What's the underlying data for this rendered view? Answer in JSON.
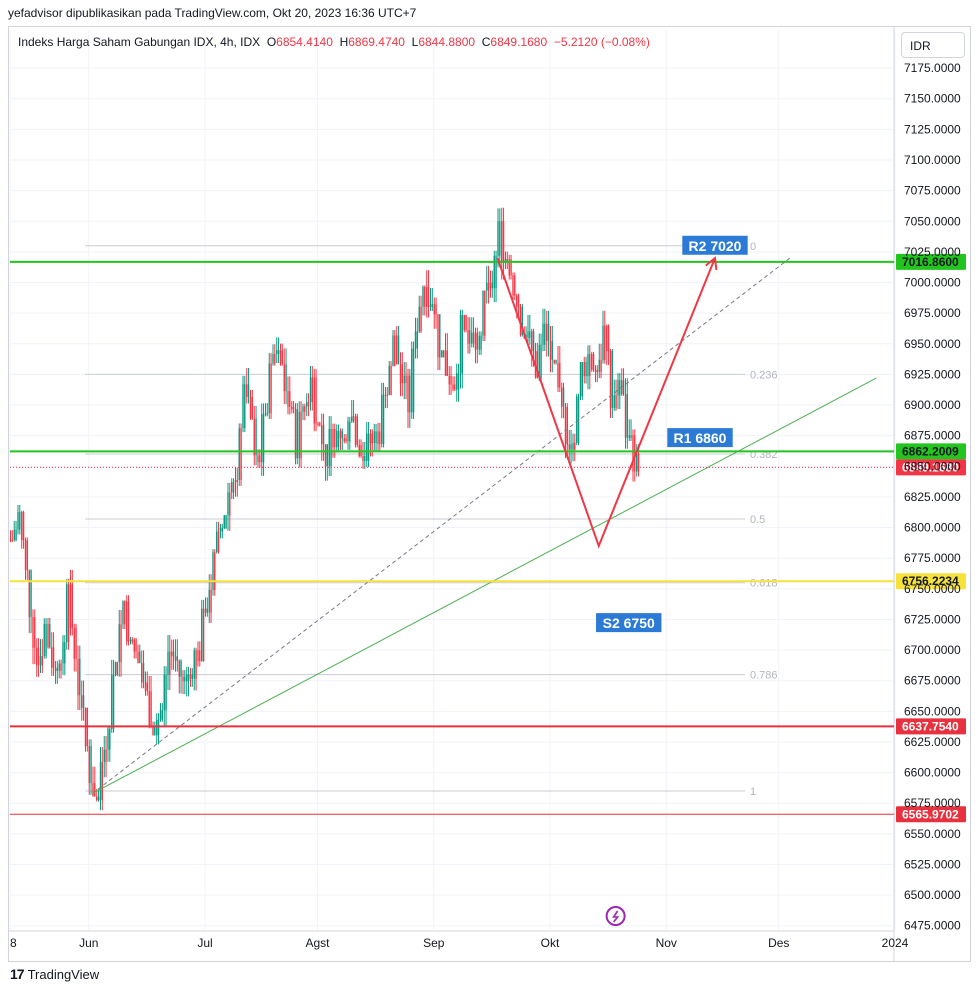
{
  "attribution": "yefadvisor dipublikasikan pada TradingView.com, Okt 20, 2023 16:36 UTC+7",
  "legend": {
    "symbol": "Indeks Harga Saham Gabungan IDX, 4h, IDX",
    "o_label": "O",
    "o": "6854.4140",
    "h_label": "H",
    "h": "6869.4740",
    "l_label": "L",
    "l": "6844.8800",
    "c_label": "C",
    "c": "6849.1680",
    "change": "−5.2120 (−0.08%)"
  },
  "currency": "IDR",
  "footer": {
    "brand": "TradingView",
    "logo": "17"
  },
  "colors": {
    "up": "#089981",
    "down": "#f23645",
    "green_line": "#22c51d",
    "yellow_line": "#f7e23b",
    "red_line": "#e8313e",
    "label_blue": "#2b7bd6",
    "projection_red": "#f23645",
    "trend_green": "#4caf50"
  },
  "chart_data": {
    "type": "candlestick",
    "ylim": [
      6465,
      7200
    ],
    "y_ticks": [
      "7175.0000",
      "7150.0000",
      "7125.0000",
      "7100.0000",
      "7075.0000",
      "7050.0000",
      "7025.0000",
      "7000.0000",
      "6975.0000",
      "6950.0000",
      "6925.0000",
      "6900.0000",
      "6875.0000",
      "6850.0000",
      "6825.0000",
      "6800.0000",
      "6775.0000",
      "6750.0000",
      "6725.0000",
      "6700.0000",
      "6675.0000",
      "6650.0000",
      "6625.0000",
      "6600.0000",
      "6575.0000",
      "6550.0000",
      "6525.0000",
      "6500.0000",
      "6475.0000"
    ],
    "x_ticks": [
      {
        "label": "8",
        "t": 0
      },
      {
        "label": "Jun",
        "t": 21
      },
      {
        "label": "Jul",
        "t": 52
      },
      {
        "label": "Agst",
        "t": 82
      },
      {
        "label": "Sep",
        "t": 113
      },
      {
        "label": "Okt",
        "t": 144
      },
      {
        "label": "Nov",
        "t": 175
      },
      {
        "label": "Des",
        "t": 205
      },
      {
        "label": "2024",
        "t": 236
      }
    ],
    "price_path": [
      [
        0,
        6790
      ],
      [
        2,
        6810
      ],
      [
        4,
        6760
      ],
      [
        7,
        6690
      ],
      [
        9,
        6720
      ],
      [
        12,
        6680
      ],
      [
        15,
        6740
      ],
      [
        17,
        6700
      ],
      [
        19,
        6640
      ],
      [
        21,
        6600
      ],
      [
        23,
        6575
      ],
      [
        24,
        6610
      ],
      [
        26,
        6650
      ],
      [
        28,
        6700
      ],
      [
        30,
        6740
      ],
      [
        32,
        6700
      ],
      [
        34,
        6690
      ],
      [
        36,
        6660
      ],
      [
        38,
        6640
      ],
      [
        40,
        6650
      ],
      [
        42,
        6700
      ],
      [
        44,
        6690
      ],
      [
        46,
        6670
      ],
      [
        48,
        6690
      ],
      [
        50,
        6700
      ],
      [
        52,
        6740
      ],
      [
        54,
        6770
      ],
      [
        56,
        6800
      ],
      [
        58,
        6830
      ],
      [
        60,
        6850
      ],
      [
        62,
        6910
      ],
      [
        64,
        6880
      ],
      [
        66,
        6860
      ],
      [
        68,
        6900
      ],
      [
        70,
        6940
      ],
      [
        72,
        6930
      ],
      [
        74,
        6900
      ],
      [
        76,
        6870
      ],
      [
        78,
        6900
      ],
      [
        80,
        6920
      ],
      [
        82,
        6880
      ],
      [
        84,
        6860
      ],
      [
        86,
        6880
      ],
      [
        88,
        6870
      ],
      [
        90,
        6900
      ],
      [
        92,
        6880
      ],
      [
        94,
        6860
      ],
      [
        96,
        6870
      ],
      [
        98,
        6880
      ],
      [
        100,
        6920
      ],
      [
        102,
        6950
      ],
      [
        104,
        6920
      ],
      [
        106,
        6900
      ],
      [
        108,
        6970
      ],
      [
        110,
        7000
      ],
      [
        112,
        6990
      ],
      [
        114,
        6950
      ],
      [
        116,
        6930
      ],
      [
        118,
        6920
      ],
      [
        120,
        6960
      ],
      [
        122,
        6950
      ],
      [
        124,
        6940
      ],
      [
        126,
        6980
      ],
      [
        128,
        7000
      ],
      [
        130,
        7040
      ],
      [
        132,
        7020
      ],
      [
        134,
        7000
      ],
      [
        136,
        6970
      ],
      [
        138,
        6950
      ],
      [
        140,
        6930
      ],
      [
        142,
        6960
      ],
      [
        144,
        6940
      ],
      [
        146,
        6900
      ],
      [
        148,
        6880
      ],
      [
        150,
        6870
      ],
      [
        152,
        6930
      ],
      [
        154,
        6940
      ],
      [
        156,
        6930
      ],
      [
        158,
        6960
      ],
      [
        160,
        6900
      ],
      [
        162,
        6920
      ],
      [
        164,
        6880
      ],
      [
        166,
        6860
      ],
      [
        167,
        6849.168
      ]
    ],
    "horizontal_levels": [
      {
        "price": 7016.86,
        "label": "7016.8600",
        "color": "green"
      },
      {
        "price": 6862.2009,
        "label": "6862.2009",
        "color": "green"
      },
      {
        "price": 6849.168,
        "label": "6849.1680",
        "color": "last"
      },
      {
        "price": 6756.2234,
        "label": "6756.2234",
        "color": "yellow"
      },
      {
        "price": 6637.754,
        "label": "6637.7540",
        "color": "red"
      },
      {
        "price": 6565.9702,
        "label": "6565.9702",
        "color": "red"
      }
    ],
    "fibonacci": {
      "start_t": 20,
      "end_t": 196,
      "high": 7030,
      "low": 6585,
      "levels": [
        {
          "ratio": "0",
          "price": 7030
        },
        {
          "ratio": "0.236",
          "price": 6925
        },
        {
          "ratio": "0.382",
          "price": 6860
        },
        {
          "ratio": "0.5",
          "price": 6807
        },
        {
          "ratio": "0.618",
          "price": 6755
        },
        {
          "ratio": "0.786",
          "price": 6680
        },
        {
          "ratio": "1",
          "price": 6585
        }
      ]
    },
    "annotations": [
      {
        "text": "R2 7020",
        "t": 188,
        "price": 7030
      },
      {
        "text": "R1 6860",
        "t": 184,
        "price": 6873
      },
      {
        "text": "S2 6750",
        "t": 165,
        "price": 6722
      }
    ],
    "projection": [
      [
        130,
        7020
      ],
      [
        157,
        6785
      ],
      [
        188,
        7020
      ]
    ],
    "dashed_trend": [
      [
        22,
        6583
      ],
      [
        208,
        7020
      ]
    ],
    "green_trend": [
      [
        22,
        6583
      ],
      [
        231,
        6922
      ]
    ]
  }
}
